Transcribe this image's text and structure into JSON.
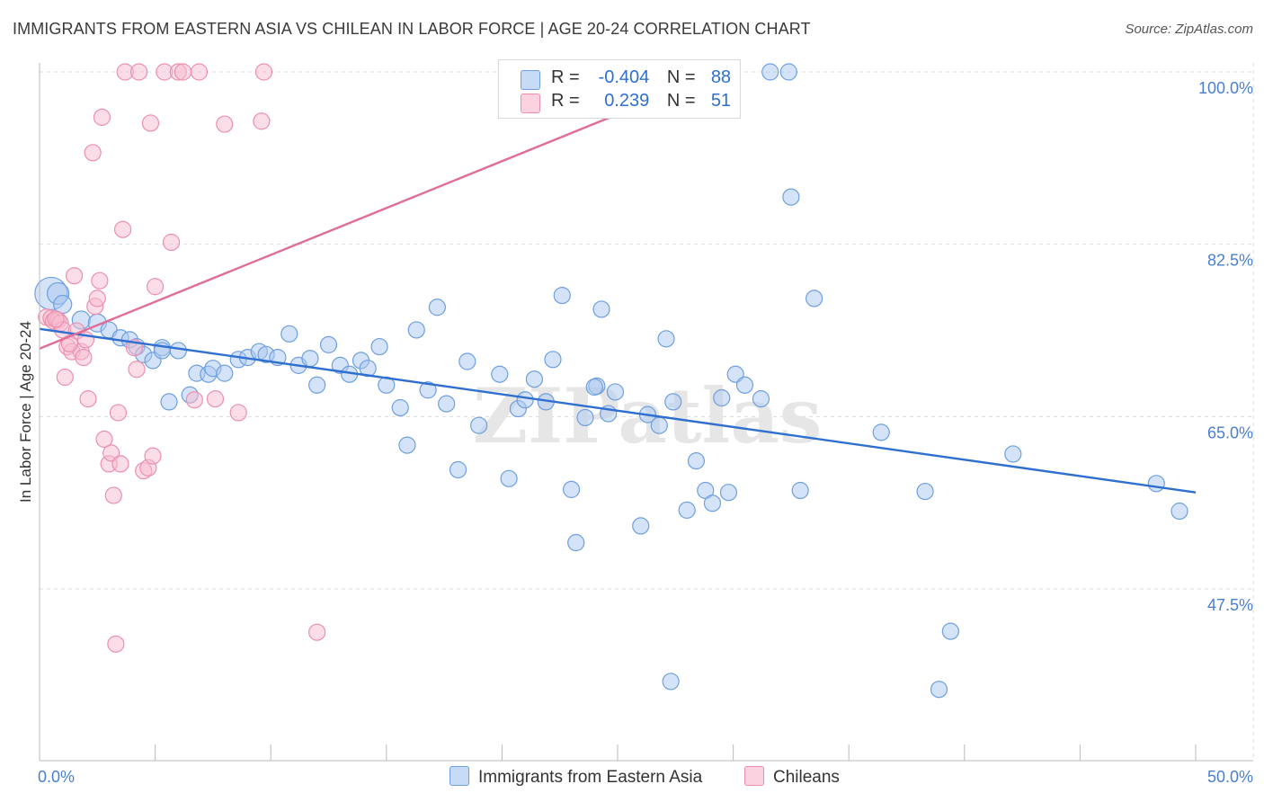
{
  "header": {
    "title": "IMMIGRANTS FROM EASTERN ASIA VS CHILEAN IN LABOR FORCE | AGE 20-24 CORRELATION CHART",
    "source": "Source: ZipAtlas.com"
  },
  "watermark": "ZIPatlas",
  "legend_top": {
    "rows": [
      {
        "r_label": "R =",
        "r_value": "-0.404",
        "n_label": "N =",
        "n_value": "88"
      },
      {
        "r_label": "R =",
        "r_value": "0.239",
        "n_label": "N =",
        "n_value": "51"
      }
    ]
  },
  "legend_bottom": {
    "series1": "Immigrants from Eastern Asia",
    "series2": "Chileans"
  },
  "colors": {
    "blue_fill": "#aac8f0",
    "blue_stroke": "#6e9fe0",
    "blue_line": "#2f6fd0",
    "pink_fill": "#f8bcd0",
    "pink_stroke": "#ec8fae",
    "pink_line": "#e06c97",
    "grid": "#dddddd",
    "tick_label": "#4a7fd0"
  },
  "chart_data": {
    "type": "scatter",
    "ylabel": "In Labor Force | Age 20-24",
    "xlim": [
      0,
      50
    ],
    "ylim": [
      31,
      101
    ],
    "x_ticks": [
      "0.0%",
      "50.0%"
    ],
    "y_ticks": [
      {
        "value": 100,
        "label": "100.0%"
      },
      {
        "value": 82.5,
        "label": "82.5%"
      },
      {
        "value": 65,
        "label": "65.0%"
      },
      {
        "value": 47.5,
        "label": "47.5%"
      }
    ],
    "grid": true,
    "series": [
      {
        "name": "Immigrants from Eastern Asia",
        "color": "blue",
        "trend": {
          "x0": 0,
          "y0": 73.9,
          "x1": 50,
          "y1": 57.3
        },
        "points": [
          [
            0.5,
            77.5,
            18
          ],
          [
            0.8,
            77.5,
            12
          ],
          [
            1.0,
            76.4,
            10
          ],
          [
            1.8,
            74.8,
            10
          ],
          [
            2.5,
            74.5,
            10
          ],
          [
            3.0,
            73.8,
            9
          ],
          [
            3.5,
            73.0,
            9
          ],
          [
            3.9,
            72.8,
            9
          ],
          [
            4.2,
            72.1,
            9
          ],
          [
            4.5,
            71.3,
            9
          ],
          [
            4.9,
            70.7,
            9
          ],
          [
            5.3,
            72.0,
            9
          ],
          [
            5.6,
            66.5,
            9
          ],
          [
            6.0,
            71.7,
            9
          ],
          [
            6.5,
            67.2,
            9
          ],
          [
            6.8,
            69.4,
            9
          ],
          [
            7.3,
            69.3,
            9
          ],
          [
            7.5,
            69.9,
            9
          ],
          [
            8.0,
            69.4,
            9
          ],
          [
            8.6,
            70.8,
            9
          ],
          [
            9.0,
            71.0,
            9
          ],
          [
            9.5,
            71.6,
            9
          ],
          [
            9.8,
            71.3,
            9
          ],
          [
            10.3,
            71.0,
            9
          ],
          [
            10.8,
            73.4,
            9
          ],
          [
            11.2,
            70.2,
            9
          ],
          [
            11.7,
            70.9,
            9
          ],
          [
            12.0,
            68.2,
            9
          ],
          [
            12.5,
            72.3,
            9
          ],
          [
            13.0,
            70.2,
            9
          ],
          [
            13.4,
            69.3,
            9
          ],
          [
            13.9,
            70.7,
            9
          ],
          [
            14.2,
            69.9,
            9
          ],
          [
            14.7,
            72.1,
            9
          ],
          [
            15.0,
            68.2,
            9
          ],
          [
            15.6,
            65.9,
            9
          ],
          [
            15.9,
            62.1,
            9
          ],
          [
            16.3,
            73.8,
            9
          ],
          [
            16.8,
            67.7,
            9
          ],
          [
            17.2,
            76.1,
            9
          ],
          [
            17.6,
            66.3,
            9
          ],
          [
            18.1,
            59.6,
            9
          ],
          [
            18.5,
            70.6,
            9
          ],
          [
            19.0,
            64.1,
            9
          ],
          [
            19.9,
            69.3,
            9
          ],
          [
            20.3,
            58.7,
            9
          ],
          [
            20.7,
            65.8,
            9
          ],
          [
            21.0,
            66.7,
            9
          ],
          [
            21.4,
            68.8,
            9
          ],
          [
            21.9,
            66.5,
            9
          ],
          [
            22.2,
            70.8,
            9
          ],
          [
            22.6,
            77.3,
            9
          ],
          [
            23.0,
            57.6,
            9
          ],
          [
            23.2,
            52.2,
            9
          ],
          [
            23.6,
            64.9,
            9
          ],
          [
            24.1,
            68.1,
            9
          ],
          [
            24.3,
            75.9,
            9
          ],
          [
            24.6,
            65.3,
            9
          ],
          [
            24.9,
            67.5,
            9
          ],
          [
            26.0,
            53.9,
            9
          ],
          [
            26.3,
            65.2,
            9
          ],
          [
            26.8,
            64.1,
            9
          ],
          [
            27.1,
            72.9,
            9
          ],
          [
            27.4,
            66.5,
            9
          ],
          [
            28.0,
            55.5,
            9
          ],
          [
            28.4,
            60.5,
            9
          ],
          [
            28.8,
            57.5,
            9
          ],
          [
            29.1,
            56.2,
            9
          ],
          [
            29.5,
            66.9,
            9
          ],
          [
            29.8,
            57.3,
            9
          ],
          [
            30.1,
            69.3,
            9
          ],
          [
            30.5,
            68.2,
            9
          ],
          [
            31.2,
            66.8,
            9
          ],
          [
            31.6,
            100.0,
            9
          ],
          [
            32.4,
            100.0,
            9
          ],
          [
            32.5,
            87.3,
            9
          ],
          [
            32.9,
            57.5,
            9
          ],
          [
            33.5,
            77.0,
            9
          ],
          [
            36.4,
            63.4,
            9
          ],
          [
            38.3,
            57.4,
            9
          ],
          [
            38.9,
            37.3,
            9
          ],
          [
            39.4,
            43.2,
            9
          ],
          [
            42.1,
            61.2,
            9
          ],
          [
            48.3,
            58.2,
            9
          ],
          [
            49.3,
            55.4,
            9
          ],
          [
            24.0,
            68.0,
            9
          ],
          [
            27.3,
            38.1,
            9
          ],
          [
            5.3,
            71.7,
            9
          ]
        ]
      },
      {
        "name": "Chileans",
        "color": "pink",
        "trend": {
          "x0": 0,
          "y0": 71.9,
          "x1": 25,
          "y1": 95.7,
          "ext_x1": 25,
          "ext_y1": 95.7
        },
        "points": [
          [
            0.3,
            75.1,
            9
          ],
          [
            0.5,
            75.0,
            9
          ],
          [
            0.6,
            74.7,
            9
          ],
          [
            0.8,
            74.8,
            9
          ],
          [
            0.9,
            74.5,
            9
          ],
          [
            1.0,
            73.8,
            9
          ],
          [
            1.1,
            69.0,
            9
          ],
          [
            1.2,
            72.1,
            9
          ],
          [
            1.4,
            71.6,
            9
          ],
          [
            1.6,
            73.7,
            9
          ],
          [
            1.8,
            71.6,
            9
          ],
          [
            1.9,
            71.0,
            9
          ],
          [
            2.0,
            72.8,
            9
          ],
          [
            2.1,
            66.8,
            9
          ],
          [
            2.3,
            91.8,
            9
          ],
          [
            2.4,
            76.2,
            9
          ],
          [
            2.5,
            77.0,
            9
          ],
          [
            2.6,
            78.8,
            9
          ],
          [
            2.7,
            95.4,
            9
          ],
          [
            2.8,
            62.7,
            9
          ],
          [
            3.0,
            60.2,
            9
          ],
          [
            3.1,
            61.3,
            9
          ],
          [
            3.2,
            57.0,
            9
          ],
          [
            3.3,
            41.9,
            9
          ],
          [
            3.4,
            65.4,
            9
          ],
          [
            3.5,
            60.2,
            9
          ],
          [
            3.6,
            84.0,
            9
          ],
          [
            3.7,
            100.0,
            9
          ],
          [
            4.1,
            72.0,
            9
          ],
          [
            4.2,
            69.8,
            9
          ],
          [
            4.3,
            100.0,
            9
          ],
          [
            4.5,
            59.5,
            9
          ],
          [
            4.7,
            59.8,
            9
          ],
          [
            4.8,
            94.8,
            9
          ],
          [
            4.9,
            61.0,
            9
          ],
          [
            5.0,
            78.2,
            9
          ],
          [
            5.4,
            100.0,
            9
          ],
          [
            5.7,
            82.7,
            9
          ],
          [
            6.0,
            100.0,
            9
          ],
          [
            6.2,
            100.0,
            9
          ],
          [
            6.7,
            66.7,
            9
          ],
          [
            6.9,
            100.0,
            9
          ],
          [
            7.6,
            66.8,
            9
          ],
          [
            8.0,
            94.7,
            9
          ],
          [
            8.6,
            65.4,
            9
          ],
          [
            9.6,
            95.0,
            9
          ],
          [
            9.7,
            100.0,
            9
          ],
          [
            12.0,
            43.1,
            9
          ],
          [
            1.5,
            79.3,
            9
          ],
          [
            1.3,
            72.4,
            9
          ],
          [
            0.7,
            74.9,
            9
          ]
        ]
      }
    ]
  }
}
